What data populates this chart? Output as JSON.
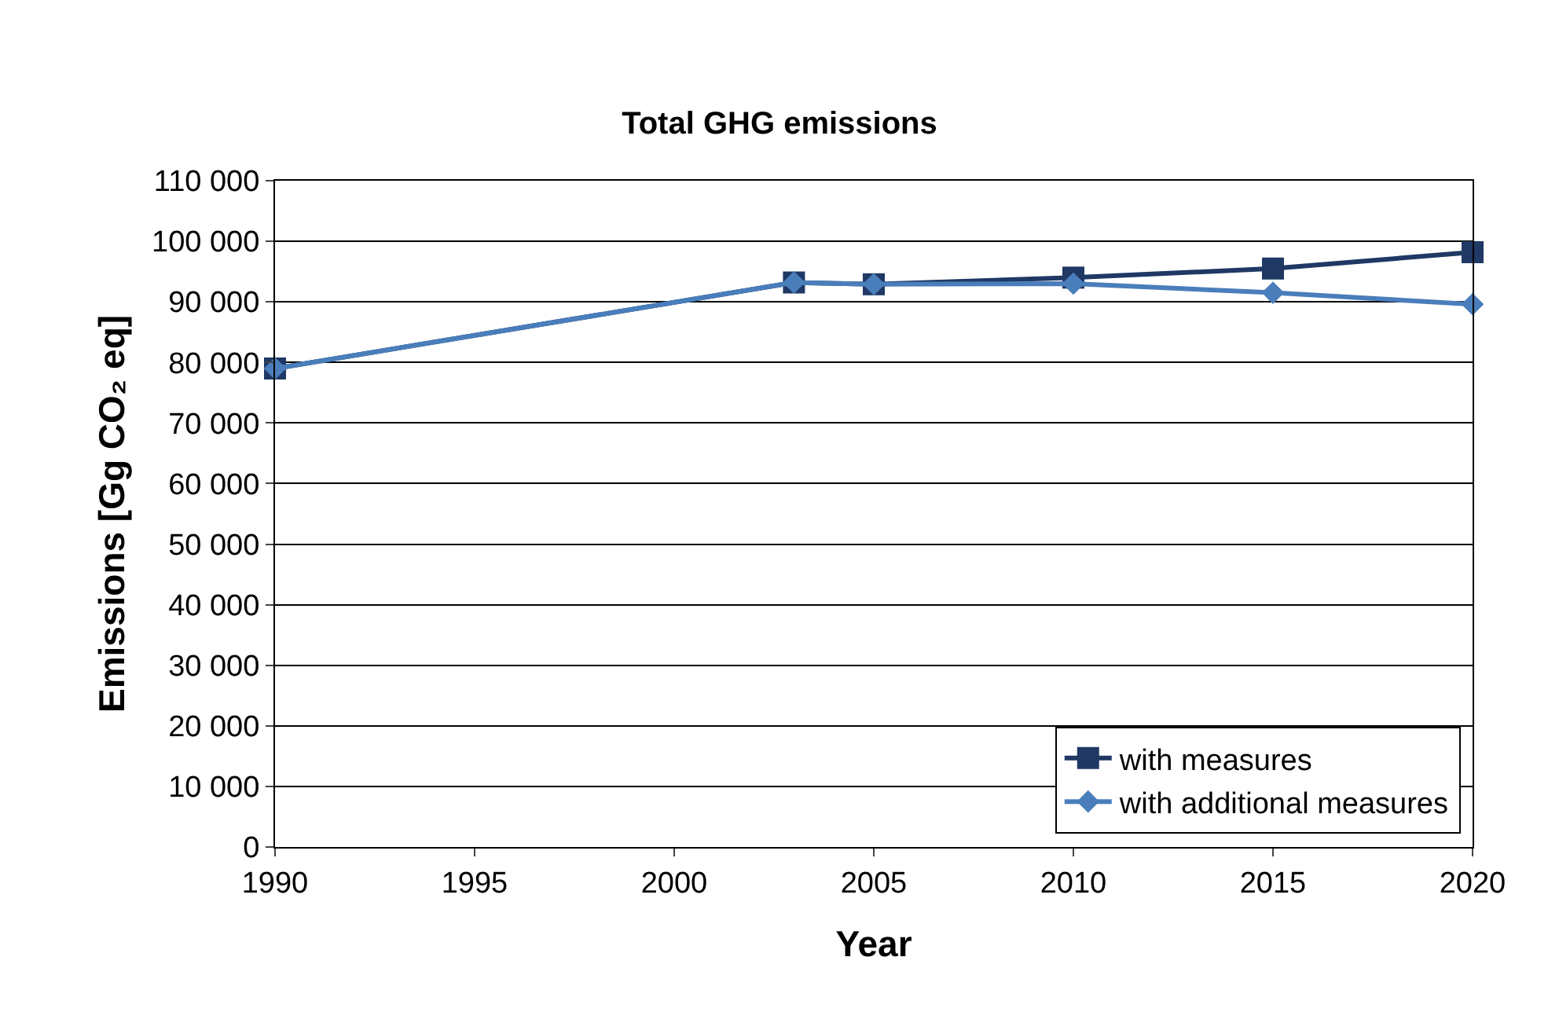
{
  "chart_data": {
    "type": "line",
    "title": "Total GHG emissions",
    "xlabel": "Year",
    "ylabel": "Emissions [Gg CO₂ eq]",
    "x": [
      1990,
      2003,
      2005,
      2010,
      2015,
      2020
    ],
    "series": [
      {
        "name": "with measures",
        "color": "#1f3864",
        "marker": "square",
        "values": [
          79000,
          93200,
          92900,
          94000,
          95500,
          98200
        ]
      },
      {
        "name": "with additional measures",
        "color": "#4a7ebb",
        "marker": "diamond",
        "values": [
          79000,
          93200,
          92900,
          93000,
          91500,
          89600
        ]
      }
    ],
    "xlim": [
      1990,
      2020
    ],
    "xticks": [
      1990,
      1995,
      2000,
      2005,
      2010,
      2015,
      2020
    ],
    "ylim": [
      0,
      110000
    ],
    "yticks": [
      {
        "value": 0,
        "label": "0"
      },
      {
        "value": 10000,
        "label": "10 000"
      },
      {
        "value": 20000,
        "label": "20 000"
      },
      {
        "value": 30000,
        "label": "30 000"
      },
      {
        "value": 40000,
        "label": "40 000"
      },
      {
        "value": 50000,
        "label": "50 000"
      },
      {
        "value": 60000,
        "label": "60 000"
      },
      {
        "value": 70000,
        "label": "70 000"
      },
      {
        "value": 80000,
        "label": "80 000"
      },
      {
        "value": 90000,
        "label": "90 000"
      },
      {
        "value": 100000,
        "label": "100 000"
      },
      {
        "value": 110000,
        "label": "110 000"
      }
    ],
    "grid": "y",
    "legend": "bottom right",
    "line_style": "solid"
  }
}
